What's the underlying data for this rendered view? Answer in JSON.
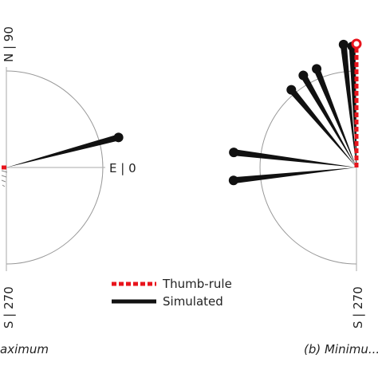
{
  "labels": {
    "north": "N | 90",
    "east": "E | 0",
    "south": "S | 270",
    "south_right": "S | 270"
  },
  "legend": {
    "thumb_rule": "Thumb-rule",
    "simulated": "Simulated"
  },
  "captions": {
    "left": "aximum",
    "right": "(b) Minimu..."
  },
  "colors": {
    "thumb_rule": "#e8141c",
    "simulated": "#111111",
    "axis": "#aaaaaa",
    "circle": "#999999"
  },
  "chart_data": [
    {
      "type": "polar-vectors",
      "panel": "a",
      "angle_unit": "degrees",
      "series": [
        {
          "name": "Simulated",
          "vectors": [
            {
              "angle": 15,
              "magnitude": 0.8
            }
          ]
        },
        {
          "name": "Thumb-rule",
          "vectors": [
            {
              "angle": 180,
              "magnitude": 0.04
            }
          ]
        }
      ]
    },
    {
      "type": "polar-vectors",
      "panel": "b",
      "angle_unit": "degrees",
      "series": [
        {
          "name": "Simulated",
          "vectors": [
            {
              "angle": 92,
              "magnitude": 0.98
            },
            {
              "angle": 96,
              "magnitude": 1.0
            },
            {
              "angle": 112,
              "magnitude": 0.86
            },
            {
              "angle": 120,
              "magnitude": 0.86
            },
            {
              "angle": 130,
              "magnitude": 0.82
            },
            {
              "angle": 173,
              "magnitude": 1.0
            },
            {
              "angle": 186,
              "magnitude": 1.0
            }
          ]
        },
        {
          "name": "Thumb-rule",
          "vectors": [
            {
              "angle": 90,
              "magnitude": 1.0
            }
          ]
        }
      ]
    }
  ]
}
